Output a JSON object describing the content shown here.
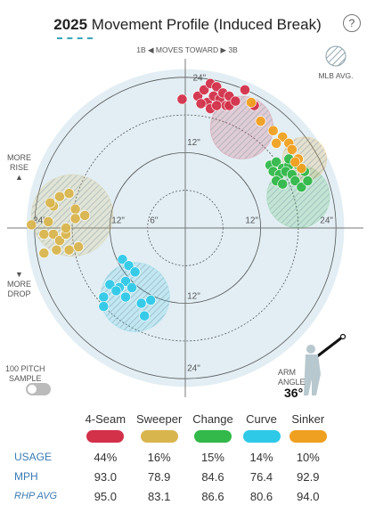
{
  "header": {
    "year": "2025",
    "title": "Movement Profile (Induced Break)",
    "help": "?"
  },
  "labels": {
    "moves_toward": "1B ◀ MOVES TOWARD ▶ 3B",
    "mlb_avg": "MLB AVG.",
    "more_rise": [
      "MORE",
      "RISE"
    ],
    "more_drop": [
      "MORE",
      "DROP"
    ],
    "sample": [
      "100 PITCH",
      "SAMPLE"
    ],
    "arm_angle_label": [
      "ARM",
      "ANGLE"
    ],
    "arm_angle_value": "36°"
  },
  "colors": {
    "4-Seam": "#d3304a",
    "Sweeper": "#d9b54e",
    "Change": "#33b84a",
    "Curve": "#2fc9e8",
    "Sinker": "#f0a020",
    "background": "#e2eef4"
  },
  "chart_data": {
    "type": "scatter",
    "xlabel": "",
    "ylabel": "",
    "xlim": [
      -27,
      27
    ],
    "ylim": [
      -27,
      27
    ],
    "ring_labels": [
      "6\"",
      "12\"",
      "24\""
    ],
    "axis_tick_labels": {
      "top_12": "12\"",
      "top_24": "24\"",
      "bottom_12": "12\"",
      "bottom_24": "24\"",
      "left_24": "24\"",
      "left_12": "12\"",
      "center_6": "6\"",
      "right_12": "12\"",
      "right_24": "24\""
    },
    "mlb_avg": [
      {
        "pitch": "4-Seam",
        "x": 9,
        "y": 16,
        "r": 5
      },
      {
        "pitch": "Sweeper",
        "x": -18,
        "y": 2,
        "r": 6.5
      },
      {
        "pitch": "Change",
        "x": 18,
        "y": 5,
        "r": 5
      },
      {
        "pitch": "Curve",
        "x": -8,
        "y": -11,
        "r": 5.5
      },
      {
        "pitch": "Sinker",
        "x": 19,
        "y": 11,
        "r": 3.5
      }
    ],
    "series": [
      {
        "name": "4-Seam",
        "points": [
          [
            2,
            21
          ],
          [
            3,
            22
          ],
          [
            3.5,
            20
          ],
          [
            4,
            23
          ],
          [
            4.5,
            21
          ],
          [
            5,
            22.5
          ],
          [
            5.5,
            20.5
          ],
          [
            6,
            21.5
          ],
          [
            6.5,
            19.5
          ],
          [
            7,
            21
          ],
          [
            4,
            19
          ],
          [
            5,
            19.5
          ],
          [
            2.5,
            19.8
          ],
          [
            7,
            19.5
          ],
          [
            -0.5,
            20.5
          ],
          [
            9.5,
            22
          ],
          [
            11,
            19.5
          ],
          [
            8,
            20.2
          ]
        ]
      },
      {
        "pitch": "",
        "name": "Sweeper",
        "points": [
          [
            -24.5,
            0.5
          ],
          [
            -21,
            3.5
          ],
          [
            -20,
            5
          ],
          [
            -18.5,
            5.5
          ],
          [
            -17.5,
            3
          ],
          [
            -21,
            -1
          ],
          [
            -20,
            -2
          ],
          [
            -19,
            -1
          ],
          [
            -22.5,
            -1
          ],
          [
            -19,
            0
          ],
          [
            -17.5,
            1.5
          ],
          [
            -20.5,
            -3.5
          ],
          [
            -22.5,
            -4
          ],
          [
            -17,
            -3
          ],
          [
            -18.5,
            -3.5
          ],
          [
            -16,
            2
          ],
          [
            -21.8,
            1
          ],
          [
            -21.5,
            4
          ]
        ]
      },
      {
        "name": "Change",
        "points": [
          [
            13.5,
            10
          ],
          [
            14.5,
            10.5
          ],
          [
            15.5,
            9.5
          ],
          [
            16.5,
            10
          ],
          [
            14,
            9
          ],
          [
            15,
            8.5
          ],
          [
            16,
            9
          ],
          [
            17,
            8.5
          ],
          [
            14.5,
            7.5
          ],
          [
            15.5,
            7
          ],
          [
            17.5,
            7.5
          ],
          [
            18.5,
            6.5
          ],
          [
            18,
            10
          ],
          [
            19.5,
            7.5
          ],
          [
            16.5,
            11
          ],
          [
            19,
            9
          ]
        ]
      },
      {
        "name": "Curve",
        "points": [
          [
            -10,
            -5
          ],
          [
            -9,
            -6
          ],
          [
            -8,
            -7
          ],
          [
            -9.5,
            -8.5
          ],
          [
            -8.5,
            -9.5
          ],
          [
            -10.5,
            -9.5
          ],
          [
            -12,
            -9
          ],
          [
            -11,
            -10
          ],
          [
            -13,
            -11
          ],
          [
            -9.5,
            -11
          ],
          [
            -7,
            -12
          ],
          [
            -6.5,
            -14
          ],
          [
            -13,
            -12.5
          ],
          [
            -5.5,
            -11.5
          ]
        ]
      },
      {
        "name": "Sinker",
        "points": [
          [
            10.5,
            20
          ],
          [
            12,
            17
          ],
          [
            14,
            15.5
          ],
          [
            15.5,
            14.5
          ],
          [
            16.5,
            13.5
          ],
          [
            17,
            12.5
          ],
          [
            14.5,
            13.5
          ],
          [
            18,
            11
          ],
          [
            18.5,
            9.5
          ],
          [
            17.5,
            10.5
          ]
        ]
      }
    ]
  },
  "stats": {
    "row_labels": {
      "usage": "USAGE",
      "mph": "MPH",
      "rhp_avg": "RHP AVG"
    },
    "pitches": [
      {
        "name": "4-Seam",
        "usage": "44%",
        "mph": "93.0",
        "rhp_avg": "95.0"
      },
      {
        "name": "Sweeper",
        "usage": "16%",
        "mph": "78.9",
        "rhp_avg": "83.1"
      },
      {
        "name": "Change",
        "usage": "15%",
        "mph": "84.6",
        "rhp_avg": "86.6"
      },
      {
        "name": "Curve",
        "usage": "14%",
        "mph": "76.4",
        "rhp_avg": "80.6"
      },
      {
        "name": "Sinker",
        "usage": "10%",
        "mph": "92.9",
        "rhp_avg": "94.0"
      }
    ]
  }
}
